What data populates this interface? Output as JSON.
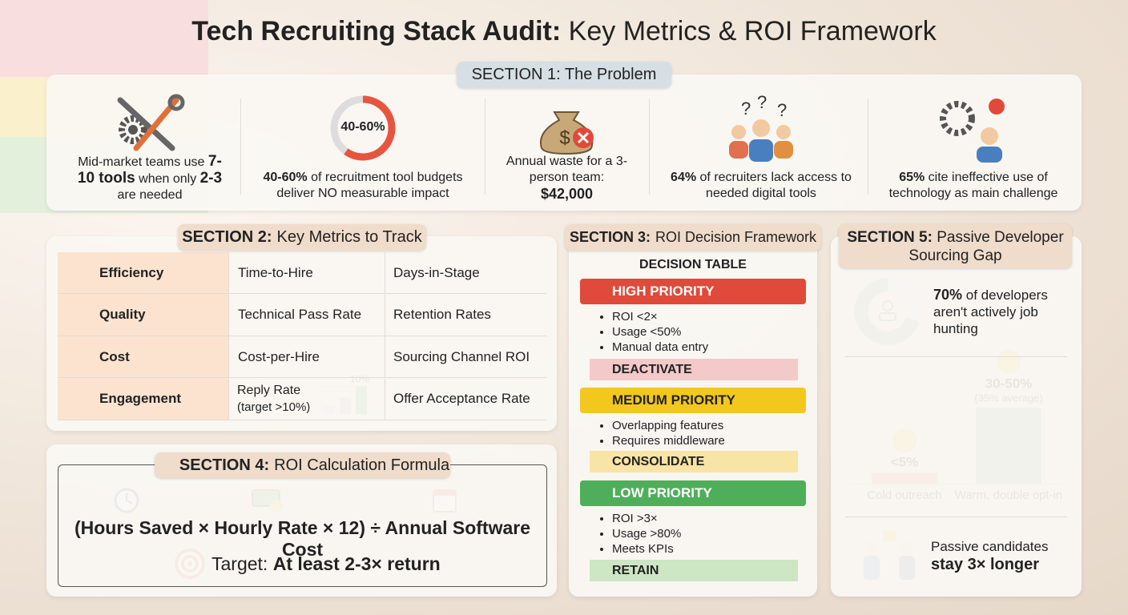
{
  "header": {
    "title_bold": "Tech Recruiting Stack Audit:",
    "title_rest": "Key Metrics & ROI Framework"
  },
  "section1": {
    "label": "SECTION 1: The Problem",
    "items": [
      {
        "text": [
          "Mid-market teams use",
          "7-10 tools",
          "when only",
          "2-3",
          "are needed"
        ]
      },
      {
        "ring_label": "40-60%",
        "ring_value": 60,
        "text": [
          "40-60%",
          "of recruitment tool budgets deliver NO measurable impact"
        ]
      },
      {
        "text": [
          "Annual waste for a 3-person team:",
          "$42,000"
        ]
      },
      {
        "text": [
          "64%",
          "of recruiters lack access to needed digital tools"
        ]
      },
      {
        "text": [
          "65%",
          "cite ineffective use of technology as main challenge"
        ]
      }
    ]
  },
  "section2": {
    "label_bold": "SECTION 2:",
    "label_rest": "Key Metrics to Track",
    "rows": [
      {
        "name": "Efficiency",
        "metrics": [
          "Time-to-Hire",
          "Days-in-Stage"
        ]
      },
      {
        "name": "Quality",
        "metrics": [
          "Technical Pass Rate",
          "Retention Rates"
        ]
      },
      {
        "name": "Cost",
        "metrics": [
          "Cost-per-Hire",
          "Sourcing Channel ROI"
        ]
      },
      {
        "name": "Engagement",
        "metrics": [
          "Reply Rate",
          "Offer Acceptance Rate"
        ],
        "note": "(target >10%)",
        "chart": {
          "values": [
            3,
            6,
            10
          ],
          "target": 10,
          "target_label": "10%"
        }
      }
    ]
  },
  "section3": {
    "label_bold": "SECTION 3:",
    "label_rest": "ROI Decision Framework",
    "table_title": "DECISION TABLE",
    "tiers": [
      {
        "name": "HIGH PRIORITY",
        "criteria": [
          "ROI <2×",
          "Usage <50%",
          "Manual data entry"
        ],
        "action": "DEACTIVATE"
      },
      {
        "name": "MEDIUM PRIORITY",
        "criteria": [
          "Overlapping features",
          "Requires middleware"
        ],
        "action": "CONSOLIDATE"
      },
      {
        "name": "LOW PRIORITY",
        "criteria": [
          "ROI >3×",
          "Usage >80%",
          "Meets KPIs"
        ],
        "action": "RETAIN"
      }
    ]
  },
  "section4": {
    "label_bold": "SECTION 4:",
    "label_rest": "ROI Calculation Formula",
    "formula": "(Hours Saved × Hourly Rate × 12) ÷ Annual Software Cost",
    "target_lead": "Target:",
    "target_bold": "At least 2-3× return"
  },
  "section5": {
    "label_bold": "SECTION 5:",
    "label_rest": "Passive Developer Sourcing Gap",
    "donut": {
      "value": 70,
      "text": [
        "70%",
        "of developers aren't actively job hunting"
      ]
    },
    "bars": {
      "categories": [
        "Cold outreach",
        "Warm, double opt-in"
      ],
      "values": [
        5,
        35
      ],
      "value_labels": [
        "<5%",
        "30-50%"
      ],
      "warm_note": "(35% average)"
    },
    "footer": [
      "Passive candidates",
      "stay 3× longer"
    ]
  }
}
